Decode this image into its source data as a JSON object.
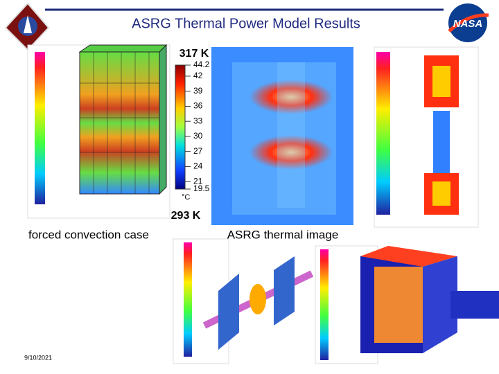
{
  "header": {
    "title": "ASRG Thermal Power Model Results",
    "logo": "NASA"
  },
  "colorbar": {
    "top_label": "317 K",
    "bottom_label": "293 K",
    "ticks": [
      44.2,
      42,
      39,
      36,
      33,
      30,
      27,
      24,
      21,
      19.5
    ],
    "unit": "°C"
  },
  "captions": [
    "forced convection case",
    "ASRG thermal image"
  ],
  "footer": {
    "date": "9/10/2021"
  }
}
